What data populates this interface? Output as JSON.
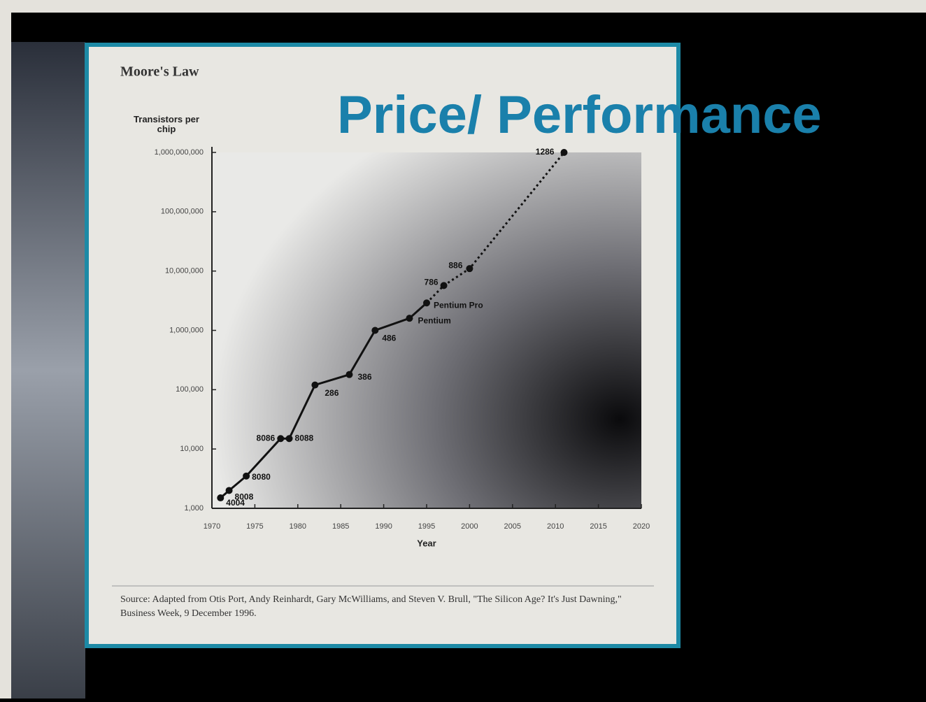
{
  "slide": {
    "title": "Price/ Performance"
  },
  "chart_data": {
    "type": "line",
    "title": "Moore's Law",
    "y_label": "Transistors per chip",
    "x_label": "Year",
    "source": "Source: Adapted from Otis Port, Andy Reinhardt, Gary McWilliams, and Steven V. Brull, \"The Silicon Age? It's Just Dawning,\" Business Week, 9 December 1996.",
    "log_scale_y": true,
    "xlim": [
      1970,
      2020
    ],
    "xticks": [
      1970,
      1975,
      1980,
      1985,
      1990,
      1995,
      2000,
      2005,
      2010,
      2015,
      2020
    ],
    "ylim": [
      1000,
      1000000000
    ],
    "yticks": [
      {
        "value": 1000,
        "label": "1,000"
      },
      {
        "value": 10000,
        "label": "10,000"
      },
      {
        "value": 100000,
        "label": "100,000"
      },
      {
        "value": 1000000,
        "label": "1,000,000"
      },
      {
        "value": 10000000,
        "label": "10,000,000"
      },
      {
        "value": 100000000,
        "label": "100,000,000"
      },
      {
        "value": 1000000000,
        "label": "1,000,000,000"
      }
    ],
    "series": [
      {
        "line_style": "solid",
        "color": "#111111",
        "x": [
          1971,
          1972,
          1974,
          1978,
          1979,
          1982,
          1986,
          1989,
          1993,
          1995
        ],
        "values": [
          1500,
          2000,
          3500,
          15000,
          15000,
          120000,
          180000,
          1000000,
          1600000,
          2900000
        ],
        "labels": [
          "4004",
          "8008",
          "8080",
          "8086",
          "8088",
          "286",
          "386",
          "486",
          "Pentium",
          "Pentium Pro"
        ]
      },
      {
        "line_style": "dotted",
        "color": "#111111",
        "x": [
          1997,
          2000,
          2011
        ],
        "values": [
          5700000,
          11000000,
          1000000000
        ],
        "labels": [
          "786",
          "886",
          "1286"
        ]
      }
    ]
  }
}
